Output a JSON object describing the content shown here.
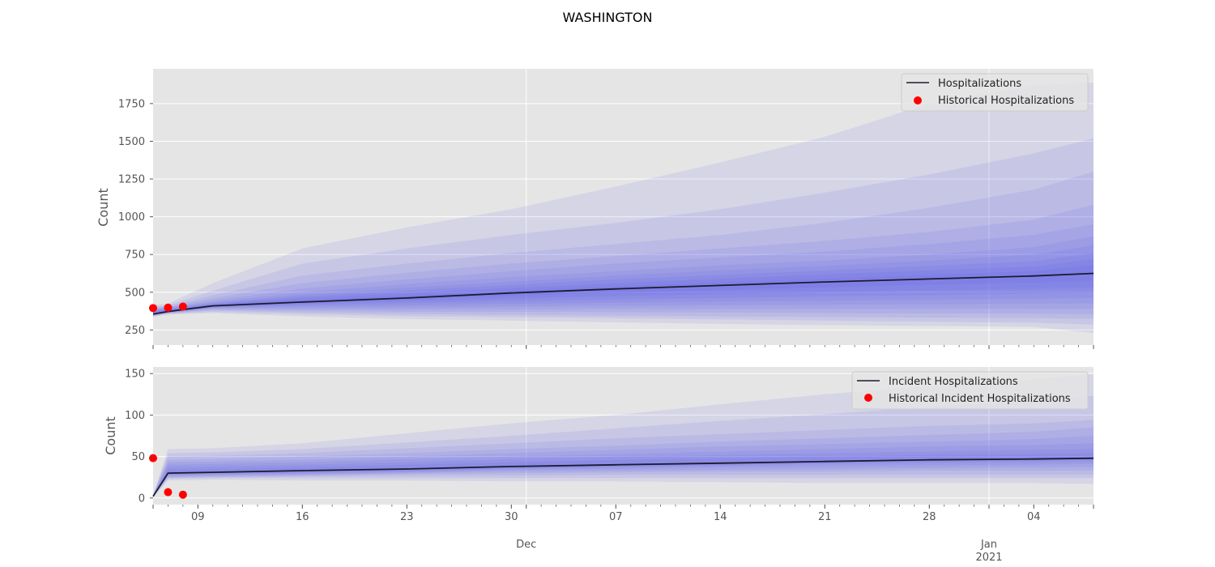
{
  "title": "WASHINGTON",
  "colors": {
    "panel_bg": "#e5e5e5",
    "grid": "#ffffff",
    "band": "#4b4bf0",
    "median": "#1b1b2f",
    "observed": "#ff0000"
  },
  "x_axis": {
    "day_ticks": [
      {
        "label": "09",
        "date": "2020-11-09"
      },
      {
        "label": "16",
        "date": "2020-11-16"
      },
      {
        "label": "23",
        "date": "2020-11-23"
      },
      {
        "label": "30",
        "date": "2020-11-30"
      },
      {
        "label": "07",
        "date": "2020-12-07"
      },
      {
        "label": "14",
        "date": "2020-12-14"
      },
      {
        "label": "21",
        "date": "2020-12-21"
      },
      {
        "label": "28",
        "date": "2020-12-28"
      },
      {
        "label": "04",
        "date": "2021-01-04"
      }
    ],
    "month_ticks": [
      {
        "label": "Dec",
        "date": "2020-12-01"
      },
      {
        "label": "Jan",
        "sublabel": "2021",
        "date": "2021-01-01"
      }
    ],
    "range": [
      "2020-11-06",
      "2021-01-08"
    ]
  },
  "chart_data": [
    {
      "type": "area",
      "name": "top",
      "ylabel": "Count",
      "ylim": [
        150,
        1980
      ],
      "yticks": [
        250,
        500,
        750,
        1000,
        1250,
        1500,
        1750
      ],
      "legend": {
        "position": "top-right",
        "line_label": "Hospitalizations",
        "points_label": "Historical Hospitalizations"
      },
      "x": [
        "2020-11-06",
        "2020-11-07",
        "2020-11-10",
        "2020-11-16",
        "2020-11-23",
        "2020-11-30",
        "2020-12-07",
        "2020-12-14",
        "2020-12-21",
        "2020-12-28",
        "2021-01-04",
        "2021-01-08"
      ],
      "median": [
        355,
        372,
        410,
        435,
        462,
        495,
        522,
        545,
        568,
        588,
        608,
        625
      ],
      "bands": [
        {
          "lower": [
            338,
            352,
            362,
            340,
            322,
            312,
            300,
            290,
            282,
            276,
            270,
            230
          ],
          "upper": [
            415,
            425,
            560,
            790,
            930,
            1050,
            1200,
            1360,
            1530,
            1750,
            1870,
            1890
          ]
        },
        {
          "lower": [
            340,
            356,
            370,
            355,
            342,
            335,
            328,
            320,
            312,
            305,
            298,
            285
          ],
          "upper": [
            405,
            415,
            510,
            690,
            790,
            880,
            960,
            1050,
            1160,
            1280,
            1420,
            1520
          ]
        },
        {
          "lower": [
            342,
            359,
            378,
            366,
            356,
            350,
            345,
            340,
            335,
            332,
            328,
            325
          ],
          "upper": [
            398,
            408,
            480,
            610,
            690,
            760,
            820,
            880,
            960,
            1060,
            1180,
            1300
          ]
        },
        {
          "lower": [
            344,
            362,
            385,
            378,
            370,
            370,
            368,
            365,
            362,
            360,
            358,
            355
          ],
          "upper": [
            392,
            402,
            460,
            560,
            630,
            690,
            740,
            790,
            840,
            900,
            980,
            1080
          ]
        },
        {
          "lower": [
            346,
            364,
            390,
            388,
            385,
            388,
            390,
            390,
            390,
            390,
            390,
            390
          ],
          "upper": [
            387,
            398,
            445,
            525,
            585,
            640,
            690,
            730,
            770,
            820,
            880,
            950
          ]
        },
        {
          "lower": [
            348,
            366,
            395,
            398,
            398,
            405,
            410,
            413,
            417,
            420,
            423,
            425
          ],
          "upper": [
            382,
            394,
            435,
            500,
            555,
            600,
            640,
            680,
            710,
            750,
            800,
            870
          ]
        },
        {
          "lower": [
            350,
            368,
            398,
            408,
            412,
            422,
            430,
            437,
            443,
            450,
            457,
            462
          ],
          "upper": [
            378,
            391,
            428,
            484,
            530,
            570,
            610,
            645,
            675,
            710,
            750,
            810
          ]
        },
        {
          "lower": [
            352,
            369,
            402,
            417,
            427,
            440,
            452,
            462,
            472,
            480,
            490,
            497
          ],
          "upper": [
            374,
            388,
            423,
            472,
            512,
            548,
            585,
            615,
            645,
            675,
            705,
            760
          ]
        },
        {
          "lower": [
            353,
            370,
            405,
            425,
            442,
            458,
            475,
            488,
            500,
            512,
            522,
            530
          ],
          "upper": [
            370,
            385,
            418,
            460,
            495,
            528,
            560,
            590,
            618,
            645,
            670,
            720
          ]
        },
        {
          "lower": [
            354,
            371,
            408,
            430,
            452,
            478,
            498,
            515,
            533,
            550,
            565,
            575
          ],
          "upper": [
            366,
            382,
            413,
            447,
            478,
            510,
            540,
            565,
            590,
            615,
            640,
            680
          ]
        }
      ],
      "observed": {
        "x": [
          "2020-11-06",
          "2020-11-07",
          "2020-11-08"
        ],
        "y": [
          395,
          398,
          405
        ]
      }
    },
    {
      "type": "area",
      "name": "bottom",
      "ylabel": "Count",
      "ylim": [
        -8,
        158
      ],
      "yticks": [
        0,
        50,
        100,
        150
      ],
      "legend": {
        "position": "top-right",
        "line_label": "Incident Hospitalizations",
        "points_label": "Historical Incident Hospitalizations"
      },
      "x": [
        "2020-11-06",
        "2020-11-07",
        "2020-11-10",
        "2020-11-16",
        "2020-11-23",
        "2020-11-30",
        "2020-12-07",
        "2020-12-14",
        "2020-12-21",
        "2020-12-28",
        "2021-01-04",
        "2021-01-08"
      ],
      "median": [
        2,
        30,
        31,
        33,
        35,
        38,
        40,
        42,
        44,
        46,
        47,
        48
      ],
      "bands": [
        {
          "lower": [
            1,
            21,
            22,
            21,
            21,
            20,
            20,
            19,
            18,
            18,
            18,
            17
          ],
          "upper": [
            4,
            59,
            60,
            66,
            78,
            90,
            100,
            113,
            125,
            135,
            143,
            150
          ]
        },
        {
          "lower": [
            1,
            23,
            24,
            24,
            24,
            24,
            24,
            24,
            24,
            24,
            24,
            24
          ],
          "upper": [
            3,
            54,
            55,
            59,
            67,
            75,
            84,
            93,
            101,
            110,
            117,
            123
          ]
        },
        {
          "lower": [
            1,
            24,
            25,
            26,
            27,
            27,
            28,
            28,
            28,
            28,
            28,
            28
          ],
          "upper": [
            3,
            50,
            51,
            54,
            60,
            66,
            72,
            77,
            82,
            87,
            90,
            94
          ]
        },
        {
          "lower": [
            1,
            25,
            26,
            27,
            29,
            30,
            31,
            32,
            32,
            33,
            33,
            33
          ],
          "upper": [
            3,
            46,
            47,
            50,
            54,
            59,
            63,
            68,
            72,
            76,
            80,
            85
          ]
        },
        {
          "lower": [
            2,
            26,
            27,
            28,
            30,
            32,
            33,
            34,
            35,
            36,
            37,
            37
          ],
          "upper": [
            3,
            43,
            44,
            46,
            50,
            54,
            58,
            62,
            65,
            68,
            71,
            75
          ]
        },
        {
          "lower": [
            2,
            27,
            28,
            29,
            31,
            34,
            35,
            37,
            38,
            39,
            40,
            41
          ],
          "upper": [
            3,
            40,
            41,
            43,
            47,
            50,
            53,
            56,
            59,
            62,
            64,
            66
          ]
        },
        {
          "lower": [
            2,
            28,
            29,
            30,
            32,
            35,
            37,
            39,
            41,
            42,
            43,
            44
          ],
          "upper": [
            3,
            37,
            38,
            40,
            43,
            47,
            50,
            52,
            54,
            56,
            58,
            59
          ]
        },
        {
          "lower": [
            2,
            29,
            30,
            31,
            33,
            36,
            38,
            40,
            42,
            44,
            45,
            46
          ],
          "upper": [
            2,
            34,
            35,
            37,
            40,
            43,
            46,
            48,
            50,
            52,
            53,
            54
          ]
        }
      ],
      "observed": {
        "x": [
          "2020-11-06",
          "2020-11-07",
          "2020-11-08"
        ],
        "y": [
          48,
          7,
          4
        ]
      }
    }
  ]
}
